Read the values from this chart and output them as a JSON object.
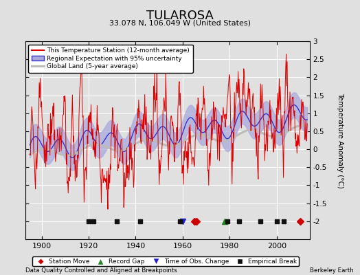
{
  "title": "TULAROSA",
  "subtitle": "33.078 N, 106.049 W (United States)",
  "ylabel": "Temperature Anomaly (°C)",
  "xlim": [
    1893,
    2014
  ],
  "ylim": [
    -2.5,
    3.0
  ],
  "yticks_main": [
    -2,
    -1.5,
    -1,
    -0.5,
    0,
    0.5,
    1,
    1.5,
    2,
    2.5,
    3
  ],
  "xticks": [
    1900,
    1920,
    1940,
    1960,
    1980,
    2000
  ],
  "bg_color": "#e0e0e0",
  "plot_bg_color": "#e0e0e0",
  "grid_color": "#ffffff",
  "station_line_color": "#dd0000",
  "regional_line_color": "#3333cc",
  "regional_fill_color": "#aaaadd",
  "global_line_color": "#bbbbbb",
  "legend_items": [
    {
      "label": "This Temperature Station (12-month average)",
      "color": "#dd0000"
    },
    {
      "label": "Regional Expectation with 95% uncertainty",
      "color": "#3333cc",
      "fill": "#aaaadd"
    },
    {
      "label": "Global Land (5-year average)",
      "color": "#bbbbbb"
    }
  ],
  "marker_legend": [
    {
      "label": "Station Move",
      "marker": "D",
      "color": "#cc0000"
    },
    {
      "label": "Record Gap",
      "marker": "^",
      "color": "#228822"
    },
    {
      "label": "Time of Obs. Change",
      "marker": "v",
      "color": "#2222cc"
    },
    {
      "label": "Empirical Break",
      "marker": "s",
      "color": "#111111"
    }
  ],
  "station_moves": [
    1965,
    1966,
    2010
  ],
  "record_gaps": [
    1978
  ],
  "obs_changes": [
    1960
  ],
  "emp_breaks": [
    1920,
    1922,
    1932,
    1942,
    1959,
    1979,
    1984,
    1993,
    2000,
    2003
  ],
  "marker_y": -2.0,
  "footer_left": "Data Quality Controlled and Aligned at Breakpoints",
  "footer_right": "Berkeley Earth",
  "seed": 12345
}
